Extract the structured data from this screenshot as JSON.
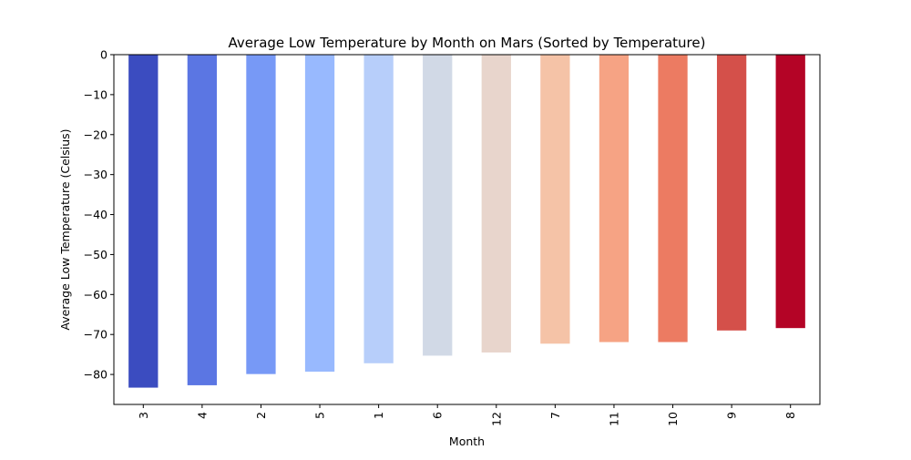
{
  "chart_data": {
    "type": "bar",
    "title": "Average Low Temperature by Month on Mars (Sorted by Temperature)",
    "xlabel": "Month",
    "ylabel": "Average Low Temperature (Celsius)",
    "categories": [
      "3",
      "4",
      "2",
      "5",
      "1",
      "6",
      "12",
      "7",
      "11",
      "10",
      "9",
      "8"
    ],
    "values": [
      -83.3,
      -82.7,
      -79.9,
      -79.3,
      -77.2,
      -75.3,
      -74.5,
      -72.3,
      -71.9,
      -71.9,
      -69.0,
      -68.4
    ],
    "colors": [
      "#3b4cc0",
      "#5b76e3",
      "#7799f6",
      "#98b9fe",
      "#b7cefa",
      "#d1d9e6",
      "#e8d5cc",
      "#f5c3a7",
      "#f6a384",
      "#ec7b62",
      "#d4504a",
      "#b40426"
    ],
    "ylim": [
      -87.5,
      0
    ],
    "yticks": [
      0,
      -10,
      -20,
      -30,
      -40,
      -50,
      -60,
      -70,
      -80
    ],
    "ytick_labels": [
      "0",
      "−10",
      "−20",
      "−30",
      "−40",
      "−50",
      "−60",
      "−70",
      "−80"
    ],
    "grid": false,
    "legend": "none",
    "xtick_rotation": "vertical"
  }
}
